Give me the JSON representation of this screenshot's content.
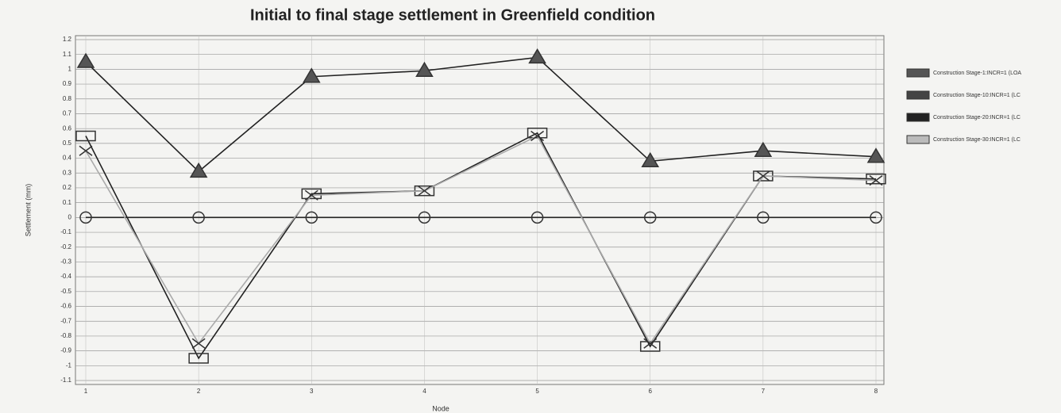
{
  "chart_data": {
    "type": "line",
    "title": "Initial to final stage settlement in Greenfield condition",
    "xlabel": "Node",
    "ylabel": "Settlement (mm)",
    "x": [
      1,
      2,
      3,
      4,
      5,
      6,
      7,
      8
    ],
    "xlim": [
      1,
      8
    ],
    "xticks": [
      1,
      2,
      3,
      4,
      5,
      6,
      7,
      8
    ],
    "ylim": [
      -1.1,
      1.2
    ],
    "yticks": [
      1.2,
      1.1,
      1,
      0.9,
      0.8,
      0.7,
      0.6,
      0.5,
      0.4,
      0.3,
      0.2,
      0.1,
      0,
      -0.1,
      -0.2,
      -0.3,
      -0.4,
      -0.5,
      -0.6,
      -0.7,
      -0.8,
      -0.9,
      -1,
      -1.1
    ],
    "grid": true,
    "legend": "right",
    "series": [
      {
        "name": "Construction Stage-1:INCR=1 (LOA",
        "color": "#555555",
        "marker": "circle",
        "values": [
          0,
          0,
          0,
          0,
          0,
          0,
          0,
          0
        ]
      },
      {
        "name": "Construction Stage-10:INCR=1 (LC",
        "color": "#444444",
        "marker": "triangle",
        "values": [
          1.05,
          0.31,
          0.95,
          0.99,
          1.08,
          0.38,
          0.45,
          0.41
        ]
      },
      {
        "name": "Construction Stage-20:INCR=1 (LC",
        "color": "#222222",
        "marker": "square",
        "values": [
          0.55,
          -0.95,
          0.16,
          0.18,
          0.57,
          -0.87,
          0.28,
          0.26
        ]
      },
      {
        "name": "Construction Stage-30:INCR=1 (LC",
        "color": "#bbbbbb",
        "marker": "cross",
        "values": [
          0.45,
          -0.85,
          0.15,
          0.18,
          0.55,
          -0.85,
          0.28,
          0.25
        ]
      }
    ]
  }
}
